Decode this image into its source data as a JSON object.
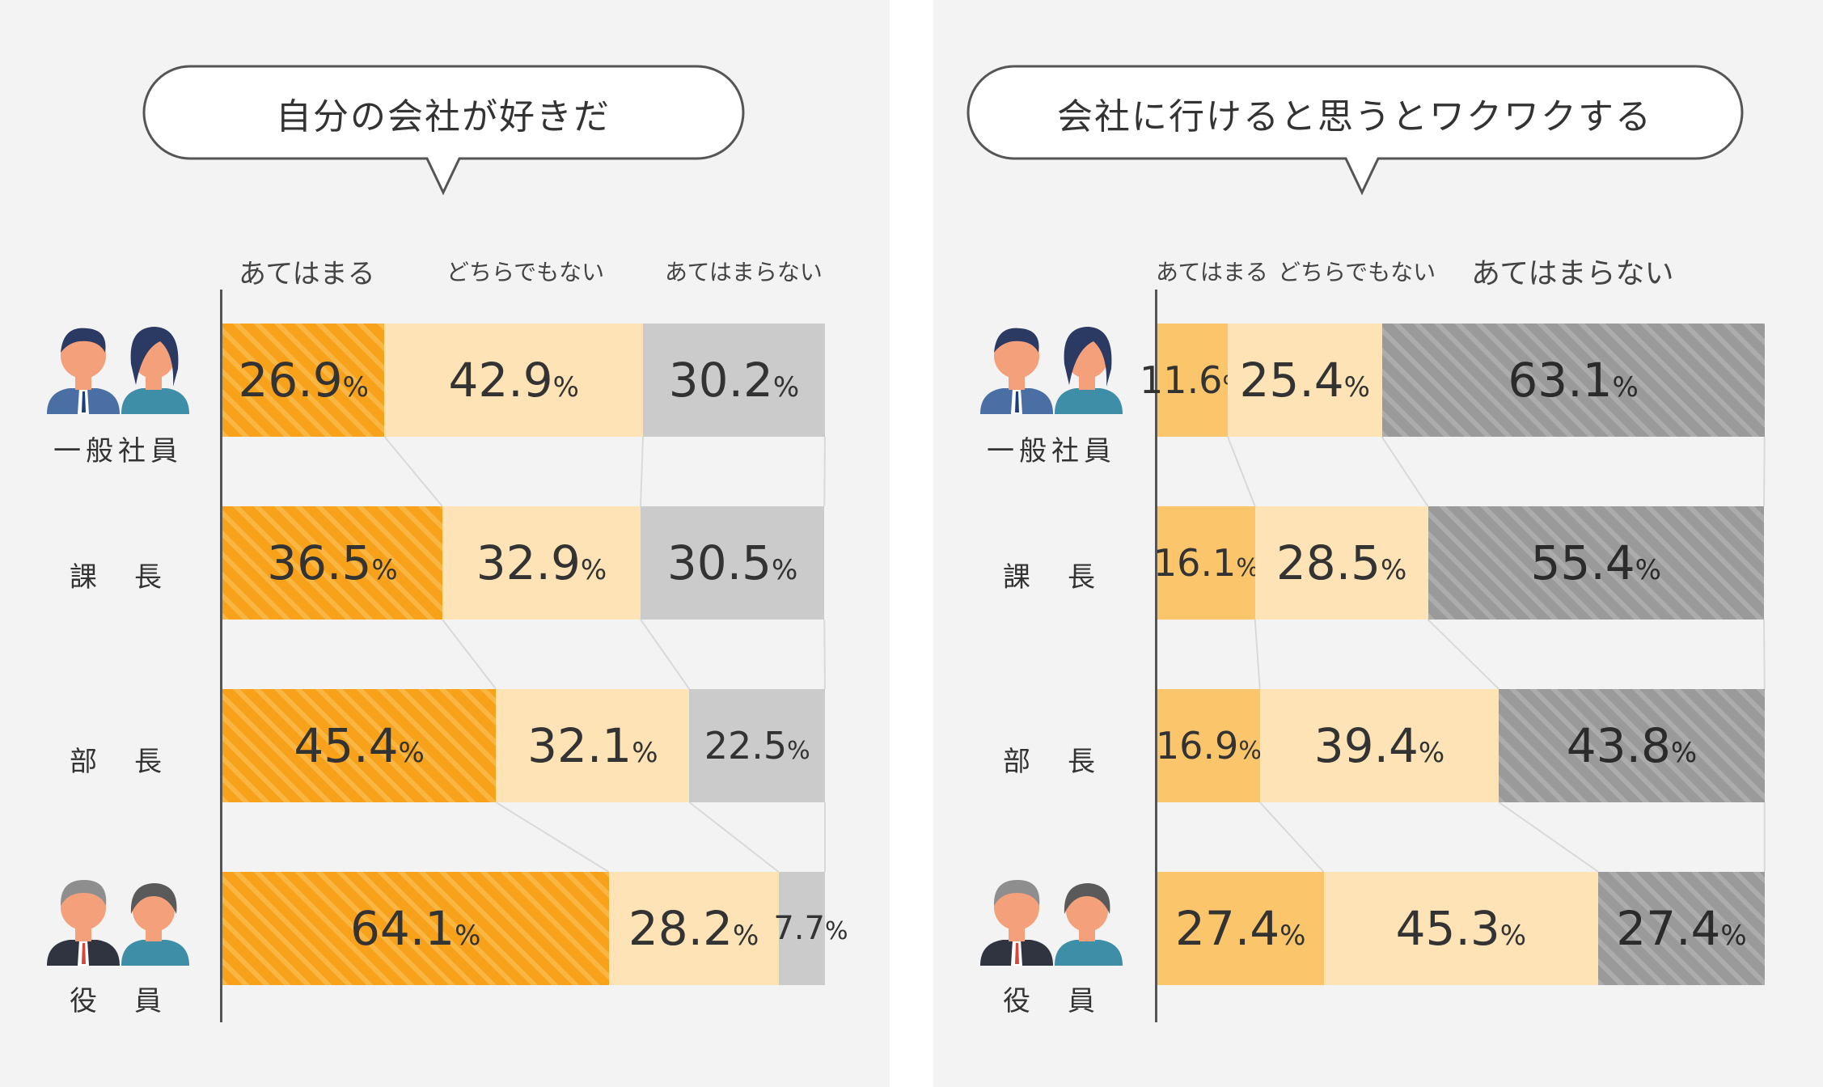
{
  "categories": [
    "一般社員",
    "課　長",
    "部　長",
    "役　員"
  ],
  "colors": {
    "left_agree": "#f7a21a",
    "neutral": "#fde3b6",
    "left_disagree": "#cbcbcb",
    "right_agree": "#fbc56c",
    "right_disagree": "#9a9a9a",
    "background": "#f3f3f3"
  },
  "chart_data": [
    {
      "type": "bar",
      "stacked": "horizontal-100%",
      "title": "自分の会社が好きだ",
      "categories": [
        "一般社員",
        "課　長",
        "部　長",
        "役　員"
      ],
      "series": [
        {
          "name": "あてはまる",
          "values": [
            26.9,
            36.5,
            45.4,
            64.1
          ]
        },
        {
          "name": "どちらでもない",
          "values": [
            42.9,
            32.9,
            32.1,
            28.2
          ]
        },
        {
          "name": "あてはまらない",
          "values": [
            30.2,
            30.5,
            22.5,
            7.7
          ]
        }
      ],
      "legend_placement": "top"
    },
    {
      "type": "bar",
      "stacked": "horizontal-100%",
      "title": "会社に行けると思うとワクワクする",
      "categories": [
        "一般社員",
        "課　長",
        "部　長",
        "役　員"
      ],
      "series": [
        {
          "name": "あてはまる",
          "values": [
            11.6,
            16.1,
            16.9,
            27.4
          ]
        },
        {
          "name": "どちらでもない",
          "values": [
            25.4,
            28.5,
            39.4,
            45.3
          ]
        },
        {
          "name": "あてはまらない",
          "values": [
            63.1,
            55.4,
            43.8,
            27.4
          ]
        }
      ],
      "legend_placement": "top"
    }
  ]
}
